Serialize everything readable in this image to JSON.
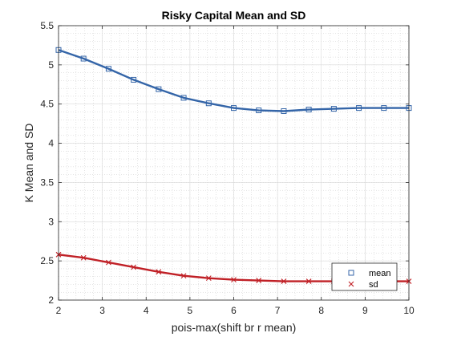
{
  "chart_data": {
    "type": "line",
    "title": "Risky Capital Mean and SD",
    "xlabel": "pois-max(shift br r mean)",
    "ylabel": "K Mean and SD",
    "xlim": [
      2,
      10
    ],
    "ylim": [
      2,
      5.5
    ],
    "xticks": [
      "2",
      "3",
      "4",
      "5",
      "6",
      "7",
      "8",
      "9",
      "10"
    ],
    "yticks": [
      "2",
      "2.5",
      "3",
      "3.5",
      "4",
      "4.5",
      "5",
      "5.5"
    ],
    "grid": true,
    "minor_grid": true,
    "legend_position": "bottom-right",
    "x": [
      2.0,
      2.571,
      3.143,
      3.714,
      4.286,
      4.857,
      5.429,
      6.0,
      6.571,
      7.143,
      7.714,
      8.286,
      8.857,
      9.429,
      10.0
    ],
    "series": [
      {
        "name": "mean",
        "color": "#3465a8",
        "marker": "square",
        "values": [
          5.19,
          5.08,
          4.95,
          4.81,
          4.69,
          4.58,
          4.51,
          4.45,
          4.42,
          4.41,
          4.43,
          4.44,
          4.45,
          4.45,
          4.45
        ]
      },
      {
        "name": "sd",
        "color": "#c02026",
        "marker": "x",
        "values": [
          2.58,
          2.54,
          2.48,
          2.42,
          2.36,
          2.31,
          2.28,
          2.26,
          2.25,
          2.24,
          2.24,
          2.24,
          2.24,
          2.24,
          2.24
        ]
      }
    ]
  }
}
